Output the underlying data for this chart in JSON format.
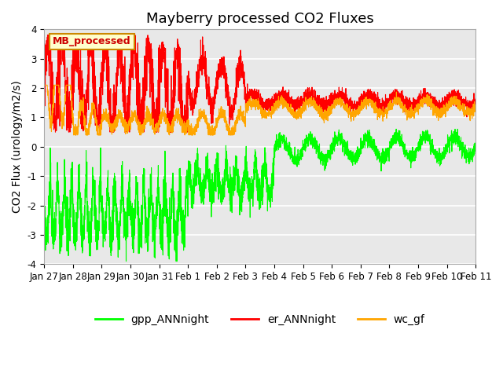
{
  "title": "Mayberry processed CO2 Fluxes",
  "ylabel": "CO2 Flux (urology/m2/s)",
  "ylim": [
    -4.0,
    4.0
  ],
  "yticks": [
    -4.0,
    -3.0,
    -2.0,
    -1.0,
    0.0,
    1.0,
    2.0,
    3.0,
    4.0
  ],
  "colors": {
    "gpp_ANNnight": "#00ff00",
    "er_ANNnight": "#ff0000",
    "wc_gf": "#ffa500"
  },
  "legend_labels": [
    "gpp_ANNnight",
    "er_ANNnight",
    "wc_gf"
  ],
  "inset_label": "MB_processed",
  "inset_facecolor": "#ffffcc",
  "inset_edgecolor": "#cc8800",
  "inset_textcolor": "#cc0000",
  "background_color": "#e8e8e8",
  "fig_background": "#ffffff",
  "n_points": 3600,
  "title_fontsize": 13,
  "label_fontsize": 10,
  "tick_fontsize": 8.5,
  "day_labels": [
    "Jan 27",
    "Jan 28",
    "Jan 29",
    "Jan 30",
    "Jan 31",
    "Feb 1",
    "Feb 2",
    "Feb 3",
    "Feb 4",
    "Feb 5",
    "Feb 6",
    "Feb 7",
    "Feb 8",
    "Feb 9",
    "Feb 10",
    "Feb 11"
  ],
  "tick_positions": [
    0,
    1,
    2,
    3,
    4,
    5,
    6,
    7,
    8,
    9,
    10,
    11,
    12,
    13,
    14,
    15
  ]
}
